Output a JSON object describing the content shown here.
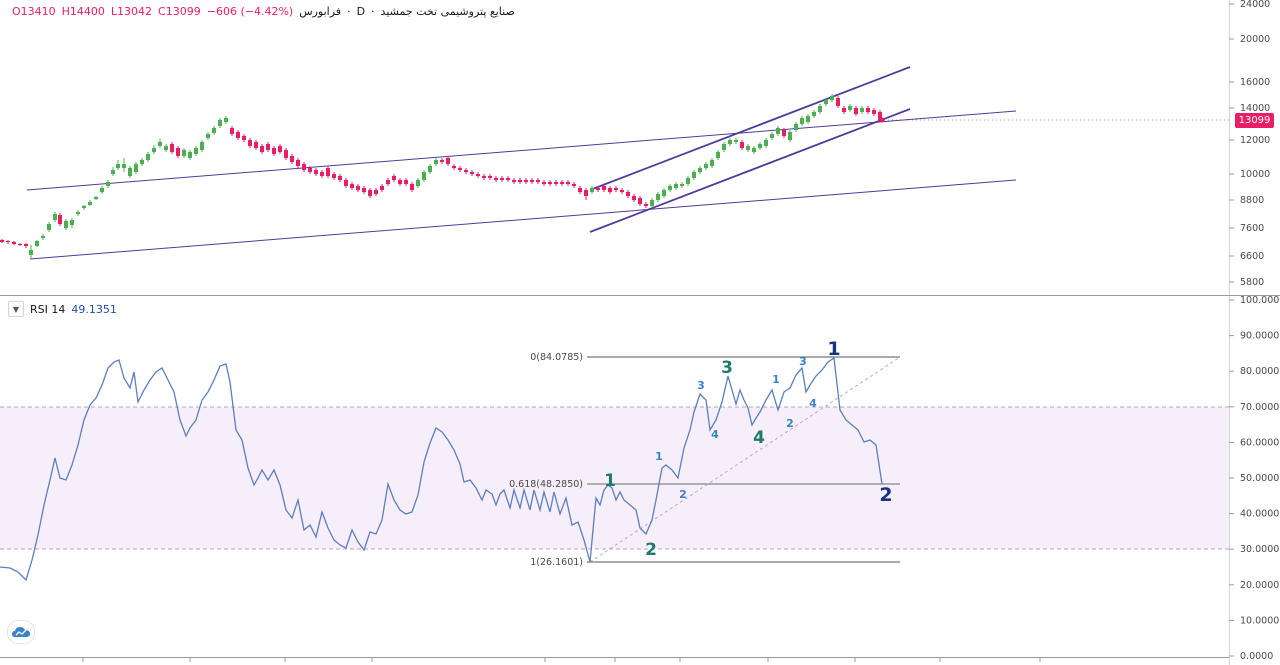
{
  "legend": {
    "title": "صنایع پتروشیمی تخت جمشید",
    "sep": "·",
    "interval": "D",
    "exchange": "فرابورس",
    "dot": "·",
    "open": "O13410",
    "high": "H14400",
    "low": "L13042",
    "close": "C13099",
    "change": "−606 (−4.42%)"
  },
  "price_tag": "13099",
  "price_axis": [
    "24000",
    "20000",
    "16000",
    "14000",
    "12000",
    "10000",
    "8800",
    "7600",
    "6600",
    "5800"
  ],
  "rsi": {
    "name": "RSI 14",
    "value": "49.1351",
    "axis": [
      "100.0000",
      "90.0000",
      "80.0000",
      "70.0000",
      "60.0000",
      "50.0000",
      "40.0000",
      "30.0000",
      "20.0000",
      "10.0000",
      "0.0000"
    ],
    "fib": [
      "0(84.0785)",
      "0.618(48.2850)",
      "1(26.1601)"
    ],
    "waves_large": [
      "1",
      "2",
      "3",
      "4",
      "1",
      "2"
    ],
    "waves_small": [
      "1",
      "2",
      "3",
      "4",
      "1",
      "2",
      "3",
      "4"
    ]
  },
  "colors": {
    "up": "#4caf50",
    "down": "#e91e63",
    "rsi_line": "#5b7fbf",
    "channel": "#4b3d9a",
    "rsi_band": "#f6eef8",
    "wave_teal": "#1d7a6c",
    "wave_navy": "#17357f",
    "wave_small": "#3a83c8"
  },
  "icons": {
    "collapse": "chevron-down-icon",
    "logo": "tradingview-cloud-icon"
  }
}
